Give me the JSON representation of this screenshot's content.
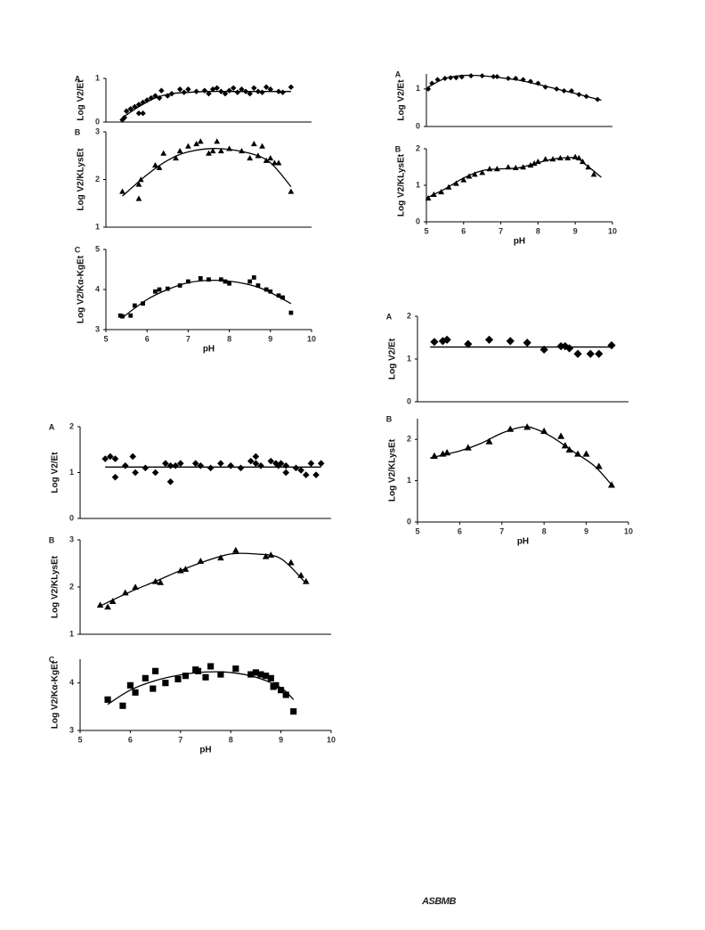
{
  "chart_data": [
    {
      "type": "scatter",
      "label": "A",
      "ylabel": "Log V2/Et",
      "marker": "diamond",
      "color": "#000000",
      "xlim": [
        5,
        10
      ],
      "ylim": [
        0,
        1
      ],
      "yticks": [
        0,
        1
      ],
      "x": [
        5.4,
        5.45,
        5.5,
        5.6,
        5.7,
        5.8,
        5.8,
        5.9,
        5.9,
        6.0,
        6.1,
        6.2,
        6.3,
        6.35,
        6.5,
        6.6,
        6.8,
        6.9,
        7.0,
        7.2,
        7.4,
        7.5,
        7.6,
        7.7,
        7.8,
        7.9,
        8.0,
        8.1,
        8.2,
        8.3,
        8.4,
        8.5,
        8.6,
        8.7,
        8.8,
        8.9,
        9.0,
        9.2,
        9.3,
        9.5
      ],
      "values": [
        0.05,
        0.1,
        0.25,
        0.3,
        0.35,
        0.2,
        0.4,
        0.2,
        0.45,
        0.5,
        0.55,
        0.6,
        0.55,
        0.72,
        0.6,
        0.65,
        0.75,
        0.68,
        0.75,
        0.7,
        0.72,
        0.65,
        0.75,
        0.78,
        0.7,
        0.65,
        0.72,
        0.78,
        0.68,
        0.75,
        0.7,
        0.65,
        0.78,
        0.7,
        0.68,
        0.8,
        0.75,
        0.7,
        0.68,
        0.8
      ],
      "fit": {
        "x": [
          5.4,
          5.8,
          6.2,
          6.6,
          7,
          7.5,
          8,
          9,
          9.5
        ],
        "values": [
          0.1,
          0.35,
          0.55,
          0.65,
          0.68,
          0.7,
          0.7,
          0.7,
          0.7
        ]
      }
    },
    {
      "type": "scatter",
      "label": "B",
      "ylabel": "Log V2/KLysEt",
      "marker": "triangle",
      "color": "#000000",
      "xlim": [
        5,
        10
      ],
      "ylim": [
        1,
        3
      ],
      "yticks": [
        1,
        2,
        3
      ],
      "x": [
        5.4,
        5.8,
        5.8,
        5.85,
        6.2,
        6.3,
        6.4,
        6.7,
        6.8,
        7.0,
        7.2,
        7.3,
        7.5,
        7.6,
        7.7,
        7.8,
        8.0,
        8.3,
        8.5,
        8.6,
        8.7,
        8.8,
        8.9,
        9.0,
        9.1,
        9.2,
        9.5
      ],
      "values": [
        1.75,
        1.6,
        1.9,
        2.0,
        2.3,
        2.25,
        2.55,
        2.45,
        2.6,
        2.7,
        2.75,
        2.8,
        2.55,
        2.6,
        2.8,
        2.6,
        2.65,
        2.6,
        2.45,
        2.75,
        2.5,
        2.7,
        2.4,
        2.45,
        2.35,
        2.35,
        1.75
      ],
      "fit": {
        "x": [
          5.4,
          6,
          6.5,
          7,
          7.7,
          8.5,
          9,
          9.5
        ],
        "values": [
          1.65,
          2.1,
          2.4,
          2.58,
          2.65,
          2.55,
          2.35,
          1.85
        ]
      }
    },
    {
      "type": "scatter",
      "label": "C",
      "ylabel": "Log V2/Kα-KgEt",
      "xlabel": "pH",
      "marker": "square",
      "color": "#000000",
      "xlim": [
        5,
        10
      ],
      "ylim": [
        3,
        5
      ],
      "yticks": [
        3,
        4,
        5
      ],
      "xticks": [
        5,
        6,
        7,
        8,
        9,
        10
      ],
      "x": [
        5.35,
        5.4,
        5.6,
        5.7,
        5.9,
        6.2,
        6.3,
        6.5,
        6.8,
        7.0,
        7.3,
        7.5,
        7.8,
        7.9,
        8.0,
        8.5,
        8.6,
        8.7,
        8.9,
        9.0,
        9.2,
        9.3,
        9.5
      ],
      "values": [
        3.35,
        3.33,
        3.35,
        3.6,
        3.65,
        3.95,
        4.0,
        4.02,
        4.1,
        4.2,
        4.28,
        4.25,
        4.25,
        4.2,
        4.15,
        4.2,
        4.3,
        4.1,
        4.0,
        3.95,
        3.85,
        3.8,
        3.42
      ],
      "fit": {
        "x": [
          5.4,
          6,
          6.5,
          7,
          7.6,
          8.2,
          8.8,
          9.5
        ],
        "values": [
          3.3,
          3.75,
          4.0,
          4.17,
          4.23,
          4.18,
          4.02,
          3.65
        ]
      }
    },
    {
      "type": "scatter",
      "label": "A",
      "ylabel": "Log V2/Et",
      "marker": "diamond",
      "color": "#000000",
      "xlim": [
        5,
        10
      ],
      "ylim": [
        0,
        1.4
      ],
      "yticks": [
        0,
        1
      ],
      "x": [
        5.05,
        5.15,
        5.3,
        5.5,
        5.65,
        5.8,
        5.95,
        6.2,
        6.5,
        6.8,
        6.9,
        7.2,
        7.4,
        7.6,
        7.8,
        8.0,
        8.2,
        8.5,
        8.7,
        8.9,
        9.1,
        9.3,
        9.6
      ],
      "values": [
        1.0,
        1.15,
        1.25,
        1.28,
        1.3,
        1.3,
        1.32,
        1.35,
        1.35,
        1.33,
        1.33,
        1.28,
        1.28,
        1.25,
        1.2,
        1.15,
        1.05,
        1.0,
        0.95,
        0.95,
        0.85,
        0.8,
        0.72
      ],
      "fit": {
        "x": [
          5.05,
          5.5,
          6,
          6.5,
          7,
          7.5,
          8,
          8.5,
          9,
          9.7
        ],
        "values": [
          1.05,
          1.28,
          1.36,
          1.35,
          1.3,
          1.23,
          1.12,
          1.0,
          0.88,
          0.7
        ]
      }
    },
    {
      "type": "scatter",
      "label": "B",
      "ylabel": "Log V2/KLysEt",
      "xlabel": "pH",
      "marker": "triangle",
      "color": "#000000",
      "xlim": [
        5,
        10
      ],
      "ylim": [
        0,
        2
      ],
      "yticks": [
        0,
        1,
        2
      ],
      "xticks": [
        5,
        6,
        7,
        8,
        9,
        10
      ],
      "x": [
        5.05,
        5.2,
        5.4,
        5.6,
        5.8,
        6.0,
        6.15,
        6.3,
        6.5,
        6.7,
        6.9,
        7.2,
        7.4,
        7.6,
        7.8,
        7.9,
        8.0,
        8.2,
        8.4,
        8.6,
        8.8,
        9.0,
        9.1,
        9.2,
        9.35,
        9.5
      ],
      "values": [
        0.65,
        0.75,
        0.82,
        0.95,
        1.05,
        1.15,
        1.25,
        1.3,
        1.35,
        1.45,
        1.45,
        1.5,
        1.48,
        1.5,
        1.55,
        1.6,
        1.65,
        1.72,
        1.72,
        1.75,
        1.75,
        1.78,
        1.75,
        1.65,
        1.5,
        1.3
      ],
      "fit": {
        "x": [
          5,
          5.5,
          6,
          6.5,
          7,
          7.5,
          8,
          8.5,
          9,
          9.3,
          9.7
        ],
        "values": [
          0.65,
          0.9,
          1.2,
          1.4,
          1.45,
          1.48,
          1.62,
          1.73,
          1.75,
          1.55,
          1.22
        ]
      }
    },
    {
      "type": "scatter",
      "label": "A",
      "ylabel": "Log V2/Et",
      "marker": "diamond",
      "color": "#000000",
      "xlim": [
        5,
        10
      ],
      "ylim": [
        0,
        2
      ],
      "yticks": [
        0,
        1,
        2
      ],
      "x": [
        5.4,
        5.6,
        5.7,
        6.2,
        6.7,
        7.2,
        7.6,
        8.0,
        8.4,
        8.5,
        8.6,
        8.8,
        9.1,
        9.3,
        9.6
      ],
      "values": [
        1.4,
        1.42,
        1.45,
        1.35,
        1.45,
        1.42,
        1.38,
        1.22,
        1.3,
        1.3,
        1.25,
        1.12,
        1.12,
        1.12,
        1.32
      ],
      "fit": {
        "x": [
          5.3,
          9.6
        ],
        "values": [
          1.28,
          1.28
        ]
      }
    },
    {
      "type": "scatter",
      "label": "B",
      "ylabel": "Log V2/KLysEt",
      "xlabel": "pH",
      "marker": "triangle",
      "color": "#000000",
      "xlim": [
        5,
        10
      ],
      "ylim": [
        0,
        2.5
      ],
      "yticks": [
        0,
        1,
        2
      ],
      "xticks": [
        5,
        6,
        7,
        8,
        9,
        10
      ],
      "x": [
        5.4,
        5.6,
        5.7,
        6.2,
        6.7,
        7.2,
        7.6,
        8.0,
        8.4,
        8.5,
        8.6,
        8.8,
        9.0,
        9.3,
        9.6
      ],
      "values": [
        1.6,
        1.65,
        1.68,
        1.8,
        1.95,
        2.25,
        2.3,
        2.2,
        2.08,
        1.85,
        1.75,
        1.65,
        1.65,
        1.35,
        0.9
      ],
      "fit": {
        "x": [
          5.3,
          6,
          6.5,
          7,
          7.5,
          7.8,
          8.2,
          8.7,
          9.2,
          9.6
        ],
        "values": [
          1.55,
          1.72,
          1.9,
          2.15,
          2.3,
          2.25,
          2.05,
          1.7,
          1.35,
          0.9
        ]
      }
    },
    {
      "type": "scatter",
      "label": "A",
      "ylabel": "Log V2/Et",
      "marker": "diamond",
      "color": "#000000",
      "xlim": [
        5,
        10
      ],
      "ylim": [
        0,
        2
      ],
      "yticks": [
        0,
        1,
        2
      ],
      "x": [
        5.5,
        5.6,
        5.7,
        5.7,
        5.9,
        6.05,
        6.1,
        6.3,
        6.5,
        6.7,
        6.8,
        6.8,
        6.9,
        7.0,
        7.3,
        7.4,
        7.6,
        7.8,
        8.0,
        8.2,
        8.4,
        8.5,
        8.5,
        8.6,
        8.8,
        8.9,
        8.95,
        9.0,
        9.1,
        9.1,
        9.3,
        9.4,
        9.5,
        9.6,
        9.7,
        9.8
      ],
      "values": [
        1.3,
        1.35,
        1.3,
        0.9,
        1.15,
        1.35,
        1.0,
        1.1,
        1.0,
        1.2,
        0.8,
        1.15,
        1.15,
        1.2,
        1.2,
        1.15,
        1.1,
        1.2,
        1.15,
        1.1,
        1.25,
        1.35,
        1.2,
        1.15,
        1.25,
        1.2,
        1.15,
        1.2,
        1.15,
        1.0,
        1.1,
        1.05,
        0.95,
        1.2,
        0.95,
        1.2
      ],
      "fit": {
        "x": [
          5.5,
          9.8
        ],
        "values": [
          1.12,
          1.12
        ]
      }
    },
    {
      "type": "scatter",
      "label": "B",
      "ylabel": "Log V2/KLysEt",
      "marker": "triangle",
      "color": "#000000",
      "xlim": [
        5,
        10
      ],
      "ylim": [
        1,
        3
      ],
      "yticks": [
        1,
        2,
        3
      ],
      "x": [
        5.4,
        5.55,
        5.65,
        5.9,
        6.1,
        6.5,
        6.6,
        7.0,
        7.1,
        7.4,
        7.8,
        8.1,
        8.7,
        8.8,
        9.2,
        9.4,
        9.5
      ],
      "values": [
        1.62,
        1.58,
        1.7,
        1.88,
        2.0,
        2.12,
        2.1,
        2.35,
        2.38,
        2.55,
        2.62,
        2.78,
        2.65,
        2.68,
        2.52,
        2.25,
        2.12
      ],
      "fit": {
        "x": [
          5.4,
          6,
          6.5,
          7,
          7.5,
          8,
          8.5,
          9,
          9.5
        ],
        "values": [
          1.6,
          1.9,
          2.12,
          2.35,
          2.55,
          2.7,
          2.7,
          2.6,
          2.08
        ]
      }
    },
    {
      "type": "scatter",
      "label": "C",
      "ylabel": "Log V2/Kα-KgEt",
      "xlabel": "pH",
      "marker": "square",
      "color": "#000000",
      "xlim": [
        5,
        10
      ],
      "ylim": [
        3,
        4.5
      ],
      "yticks": [
        3,
        4
      ],
      "xticks": [
        5,
        6,
        7,
        8,
        9,
        10
      ],
      "x": [
        5.55,
        5.85,
        6.0,
        6.1,
        6.3,
        6.45,
        6.5,
        6.7,
        6.95,
        7.1,
        7.3,
        7.35,
        7.5,
        7.6,
        7.8,
        8.1,
        8.4,
        8.5,
        8.6,
        8.7,
        8.8,
        8.85,
        8.9,
        9.0,
        9.1,
        9.25
      ],
      "values": [
        3.65,
        3.52,
        3.95,
        3.8,
        4.1,
        3.88,
        4.25,
        4.0,
        4.08,
        4.15,
        4.28,
        4.25,
        4.12,
        4.35,
        4.18,
        4.3,
        4.18,
        4.22,
        4.18,
        4.15,
        4.1,
        3.92,
        3.95,
        3.85,
        3.75,
        3.4
      ],
      "fit": {
        "x": [
          5.55,
          6,
          6.5,
          7,
          7.5,
          8,
          8.5,
          9,
          9.25
        ],
        "values": [
          3.55,
          3.85,
          4.05,
          4.17,
          4.23,
          4.22,
          4.12,
          3.9,
          3.65
        ]
      }
    }
  ],
  "footer": "ASBMB"
}
